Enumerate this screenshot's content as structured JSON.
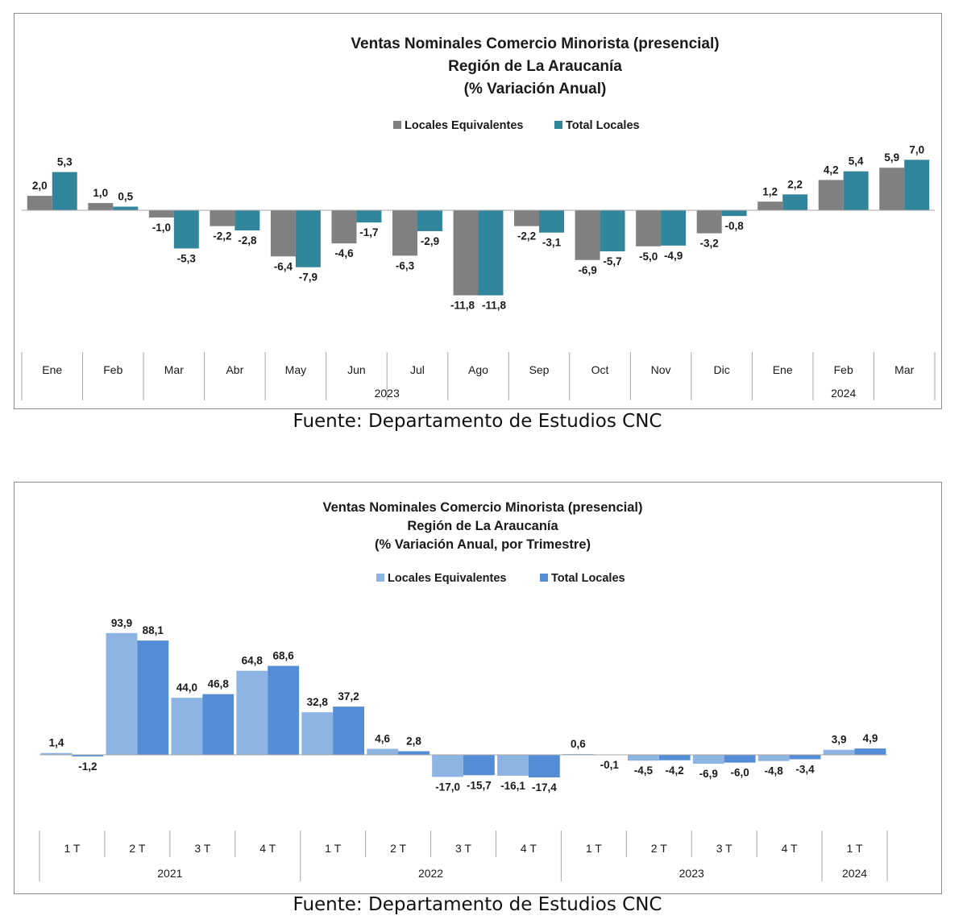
{
  "chart_data": [
    {
      "type": "bar",
      "title": [
        "Ventas Nominales Comercio Minorista (presencial)",
        "Región de La Araucanía",
        "(% Variación Anual)"
      ],
      "categories": [
        "Ene",
        "Feb",
        "Mar",
        "Abr",
        "May",
        "Jun",
        "Jul",
        "Ago",
        "Sep",
        "Oct",
        "Nov",
        "Dic",
        "Ene",
        "Feb",
        "Mar"
      ],
      "groups": [
        {
          "label": "2023",
          "count": 12
        },
        {
          "label": "2024",
          "count": 3
        }
      ],
      "series": [
        {
          "name": "Locales Equivalentes",
          "color": "#808080",
          "values": [
            2.0,
            1.0,
            -1.0,
            -2.2,
            -6.4,
            -4.6,
            -6.3,
            -11.8,
            -2.2,
            -6.9,
            -5.0,
            -3.2,
            1.2,
            4.2,
            5.9
          ],
          "labels": [
            "2,0",
            "1,0",
            "-1,0",
            "-2,2",
            "-6,4",
            "-4,6",
            "-6,3",
            "-11,8",
            "-2,2",
            "-6,9",
            "-5,0",
            "-3,2",
            "1,2",
            "4,2",
            "5,9"
          ]
        },
        {
          "name": "Total Locales",
          "color": "#31869b",
          "values": [
            5.3,
            0.5,
            -5.3,
            -2.8,
            -7.9,
            -1.7,
            -2.9,
            -11.8,
            -3.1,
            -5.7,
            -4.9,
            -0.8,
            2.2,
            5.4,
            7.0
          ],
          "labels": [
            "5,3",
            "0,5",
            "-5,3",
            "-2,8",
            "-7,9",
            "-1,7",
            "-2,9",
            "-11,8",
            "-3,1",
            "-5,7",
            "-4,9",
            "-0,8",
            "2,2",
            "5,4",
            "7,0"
          ]
        }
      ],
      "xlabel": "",
      "ylabel": "",
      "ylim": [
        -15,
        9
      ],
      "grid": false,
      "legend": "top-center"
    },
    {
      "type": "bar",
      "title": [
        "Ventas Nominales Comercio Minorista  (presencial)",
        "Región de La Araucanía",
        "(% Variación Anual, por Trimestre)"
      ],
      "categories": [
        "1 T",
        "2 T",
        "3 T",
        "4 T",
        "1 T",
        "2 T",
        "3 T",
        "4 T",
        "1 T",
        "2 T",
        "3 T",
        "4 T",
        "1 T"
      ],
      "groups": [
        {
          "label": "2021",
          "count": 4
        },
        {
          "label": "2022",
          "count": 4
        },
        {
          "label": "2023",
          "count": 4
        },
        {
          "label": "2024",
          "count": 1
        }
      ],
      "series": [
        {
          "name": "Locales Equivalentes",
          "color": "#8db4e2",
          "values": [
            1.4,
            93.9,
            44.0,
            64.8,
            32.8,
            4.6,
            -17.0,
            -16.1,
            0.6,
            -4.5,
            -6.9,
            -4.8,
            3.9
          ],
          "labels": [
            "1,4",
            "93,9",
            "44,0",
            "64,8",
            "32,8",
            "4,6",
            "-17,0",
            "-16,1",
            "0,6",
            "-4,5",
            "-6,9",
            "-4,8",
            "3,9"
          ]
        },
        {
          "name": "Total Locales",
          "color": "#538dd5",
          "values": [
            -1.2,
            88.1,
            46.8,
            68.6,
            37.2,
            2.8,
            -15.7,
            -17.4,
            -0.1,
            -4.2,
            -6.0,
            -3.4,
            4.9
          ],
          "labels": [
            "-1,2",
            "88,1",
            "46,8",
            "68,6",
            "37,2",
            "2,8",
            "-15,7",
            "-17,4",
            "-0,1",
            "-4,2",
            "-6,0",
            "-3,4",
            "4,9"
          ]
        }
      ],
      "xlabel": "",
      "ylabel": "",
      "ylim": [
        -30,
        100
      ],
      "grid": false,
      "legend": "top-center"
    }
  ],
  "sources": [
    "Fuente: Departamento de Estudios CNC",
    "Fuente: Departamento de Estudios CNC"
  ]
}
